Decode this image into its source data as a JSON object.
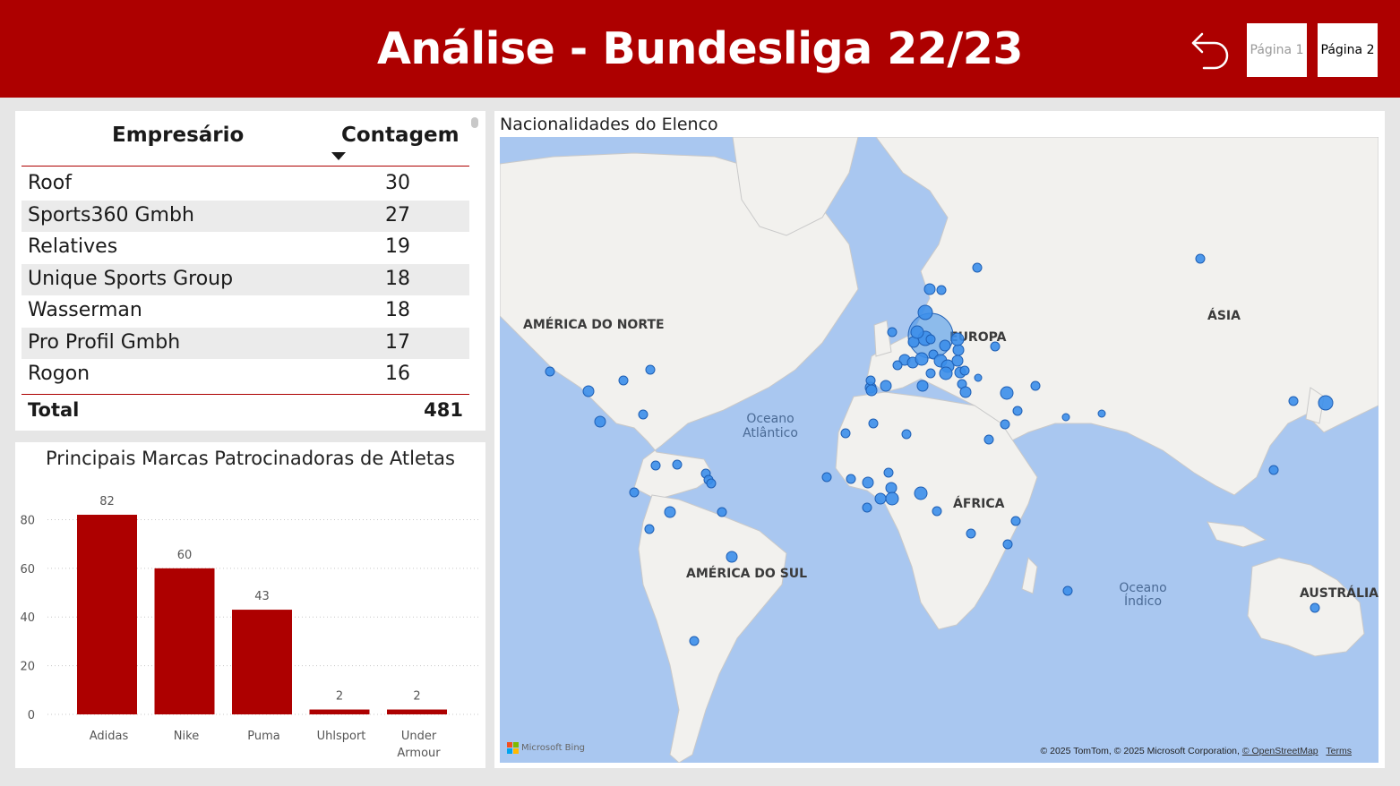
{
  "header": {
    "title": "Análise - Bundesliga 22/23",
    "page1_label": "Página 1",
    "page2_label": "Página 2",
    "bg_color": "#ad0000"
  },
  "table": {
    "col_empresario": "Empresário",
    "col_contagem": "Contagem",
    "rows": [
      {
        "name": "Roof",
        "count": "30"
      },
      {
        "name": "Sports360 Gmbh",
        "count": "27"
      },
      {
        "name": "Relatives",
        "count": "19"
      },
      {
        "name": "Unique Sports Group",
        "count": "18"
      },
      {
        "name": "Wasserman",
        "count": "18"
      },
      {
        "name": "Pro Profil Gmbh",
        "count": "17"
      },
      {
        "name": "Rogon",
        "count": "16"
      }
    ],
    "total_label": "Total",
    "total_value": "481"
  },
  "chart_data": {
    "type": "bar",
    "title": "Principais Marcas Patrocinadoras de Atletas",
    "categories": [
      "Adidas",
      "Nike",
      "Puma",
      "Uhlsport",
      "Under Armour"
    ],
    "values": [
      82,
      60,
      43,
      2,
      2
    ],
    "data_labels": [
      "82",
      "60",
      "43",
      "2",
      "2"
    ],
    "yticks": [
      "0",
      "20",
      "40",
      "60",
      "80"
    ],
    "ylim": [
      0,
      82
    ],
    "xlabel": "",
    "ylabel": "",
    "grid": true,
    "bar_color": "#ad0000"
  },
  "map": {
    "title": "Nacionalidades do Elenco",
    "continents": {
      "north_america": "AMÉRICA DO NORTE",
      "europe": "EUROPA",
      "asia": "ÁSIA",
      "africa": "ÁFRICA",
      "south_america": "AMÉRICA DO SUL",
      "australia": "AUSTRÁLIA"
    },
    "oceans": {
      "atlantic_1": "Oceano",
      "atlantic_2": "Atlântico",
      "indian_1": "Oceano",
      "indian_2": "Índico"
    },
    "bing_label": "Microsoft Bing",
    "attribution_text": "© 2025 TomTom, © 2025 Microsoft Corporation, ",
    "attribution_link": "© OpenStreetMap",
    "terms_label": "Terms",
    "bubble_color": "#3b8eea"
  }
}
